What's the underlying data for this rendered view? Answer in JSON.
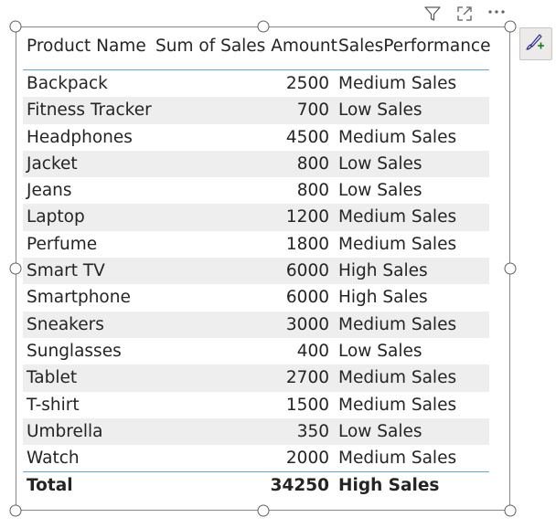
{
  "visual": {
    "columns": [
      "Product Name",
      "Sum of Sales Amount",
      "SalesPerformance"
    ],
    "rows": [
      {
        "name": "Backpack",
        "sum": "2500",
        "perf": "Medium Sales"
      },
      {
        "name": "Fitness Tracker",
        "sum": "700",
        "perf": "Low Sales"
      },
      {
        "name": "Headphones",
        "sum": "4500",
        "perf": "Medium Sales"
      },
      {
        "name": "Jacket",
        "sum": "800",
        "perf": "Low Sales"
      },
      {
        "name": "Jeans",
        "sum": "800",
        "perf": "Low Sales"
      },
      {
        "name": "Laptop",
        "sum": "1200",
        "perf": "Medium Sales"
      },
      {
        "name": "Perfume",
        "sum": "1800",
        "perf": "Medium Sales"
      },
      {
        "name": "Smart TV",
        "sum": "6000",
        "perf": "High Sales"
      },
      {
        "name": "Smartphone",
        "sum": "6000",
        "perf": "High Sales"
      },
      {
        "name": "Sneakers",
        "sum": "3000",
        "perf": "Medium Sales"
      },
      {
        "name": "Sunglasses",
        "sum": "400",
        "perf": "Low Sales"
      },
      {
        "name": "Tablet",
        "sum": "2700",
        "perf": "Medium Sales"
      },
      {
        "name": "T-shirt",
        "sum": "1500",
        "perf": "Medium Sales"
      },
      {
        "name": "Umbrella",
        "sum": "350",
        "perf": "Low Sales"
      },
      {
        "name": "Watch",
        "sum": "2000",
        "perf": "Medium Sales"
      }
    ],
    "total": {
      "name": "Total",
      "sum": "34250",
      "perf": "High Sales"
    }
  },
  "icons": {
    "filter": "filter-icon",
    "focus_mode": "focus-mode-icon",
    "more_options": "more-options-icon",
    "format_painter": "format-painter-icon"
  },
  "colors": {
    "header_rule": "#5fa8d8",
    "alt_row": "#eeeeee",
    "text": "#252423"
  }
}
